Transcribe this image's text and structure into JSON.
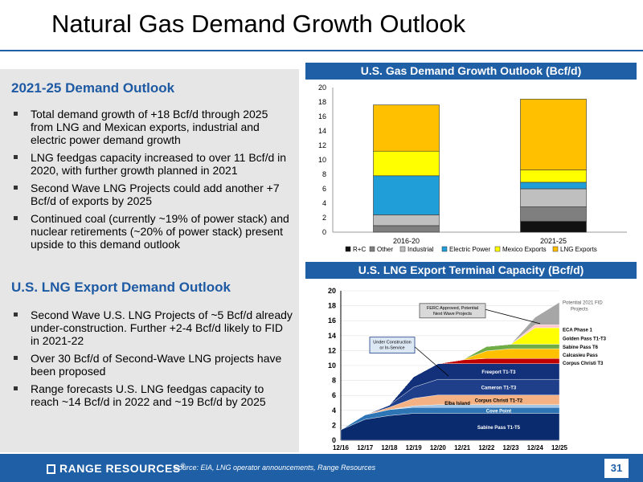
{
  "page": {
    "title": "Natural Gas Demand Growth Outlook",
    "page_number": "31",
    "source": "Source: EIA, LNG operator announcements, Range Resources",
    "logo_text": "RANGE RESOURCES",
    "logo_mark": "®"
  },
  "left": {
    "section1": {
      "heading": "2021-25 Demand Outlook",
      "bullets": [
        "Total demand growth of +18 Bcf/d through 2025 from LNG and Mexican exports, industrial and electric power demand growth",
        "LNG feedgas capacity increased to over 11 Bcf/d in 2020, with further growth planned in 2021",
        "Second Wave LNG Projects could add another +7 Bcf/d of exports by 2025",
        "Continued coal (currently ~19% of power stack) and nuclear retirements (~20% of power stack) present upside to this demand outlook"
      ]
    },
    "section2": {
      "heading": "U.S. LNG Export Demand Outlook",
      "bullets": [
        "Second Wave U.S. LNG Projects of ~5 Bcf/d already under-construction. Further +2-4 Bcf/d likely to FID in 2021-22",
        "Over 30 Bcf/d of Second-Wave LNG projects have been proposed",
        "Range forecasts U.S. LNG feedgas capacity to reach ~14 Bcf/d in 2022 and ~19 Bcf/d by 2025"
      ]
    }
  },
  "chart_data": [
    {
      "type": "bar",
      "stacked": true,
      "title": "U.S. Gas Demand Growth Outlook (Bcf/d)",
      "categories": [
        "2016-20",
        "2021-25"
      ],
      "ylim": [
        0,
        20
      ],
      "yticks": [
        0,
        2,
        4,
        6,
        8,
        10,
        12,
        14,
        16,
        18,
        20
      ],
      "grid": false,
      "legend": "bottom",
      "series": [
        {
          "name": "R+C",
          "color": "#111111",
          "values": [
            0.0,
            1.5
          ]
        },
        {
          "name": "Other",
          "color": "#7f7f7f",
          "values": [
            0.9,
            2.0
          ]
        },
        {
          "name": "Industrial",
          "color": "#bfbfbf",
          "values": [
            1.5,
            2.5
          ]
        },
        {
          "name": "Electric Power",
          "color": "#1f9ed8",
          "values": [
            5.4,
            0.9
          ]
        },
        {
          "name": "Mexico Exports",
          "color": "#ffff00",
          "values": [
            3.4,
            1.7
          ]
        },
        {
          "name": "LNG Exports",
          "color": "#ffc000",
          "values": [
            6.4,
            9.8
          ]
        }
      ]
    },
    {
      "type": "area",
      "stacked": true,
      "title": "U.S. LNG Export Terminal Capacity (Bcf/d)",
      "x": [
        "12/16",
        "12/17",
        "12/18",
        "12/19",
        "12/20",
        "12/21",
        "12/22",
        "12/23",
        "12/24",
        "12/25"
      ],
      "ylim": [
        0,
        20
      ],
      "yticks": [
        0,
        2,
        4,
        6,
        8,
        10,
        12,
        14,
        16,
        18,
        20
      ],
      "series": [
        {
          "name": "Sabine Pass T1-T5",
          "color": "#0a2c6e",
          "values": [
            1.4,
            2.8,
            3.3,
            3.6,
            3.6,
            3.6,
            3.6,
            3.6,
            3.6,
            3.6
          ]
        },
        {
          "name": "Cove Point",
          "color": "#2e75b6",
          "values": [
            0,
            0.6,
            0.8,
            0.8,
            0.8,
            0.8,
            0.8,
            0.8,
            0.8,
            0.8
          ]
        },
        {
          "name": "Elba Island",
          "color": "#9dc3e6",
          "values": [
            0,
            0,
            0,
            0.2,
            0.35,
            0.35,
            0.35,
            0.35,
            0.35,
            0.35
          ]
        },
        {
          "name": "Corpus Christi T1-T2",
          "color": "#f4b183",
          "values": [
            0,
            0,
            0.3,
            1.0,
            1.3,
            1.3,
            1.3,
            1.3,
            1.3,
            1.3
          ]
        },
        {
          "name": "Cameron T1-T3",
          "color": "#1f3f8a",
          "values": [
            0,
            0,
            0.3,
            1.5,
            2.1,
            2.1,
            2.1,
            2.1,
            2.1,
            2.1
          ]
        },
        {
          "name": "Freeport T1-T3",
          "color": "#13307a",
          "values": [
            0,
            0,
            0,
            1.4,
            2.1,
            2.1,
            2.1,
            2.1,
            2.1,
            2.1
          ]
        },
        {
          "name": "Corpus Christi T3",
          "color": "#c00000",
          "values": [
            0,
            0,
            0,
            0,
            0,
            0.5,
            0.7,
            0.7,
            0.7,
            0.7
          ]
        },
        {
          "name": "Calcasieu Pass",
          "color": "#ffc000",
          "values": [
            0,
            0,
            0,
            0,
            0,
            0,
            1.0,
            1.3,
            1.3,
            1.3
          ]
        },
        {
          "name": "Sabine Pass T6",
          "color": "#70ad47",
          "values": [
            0,
            0,
            0,
            0,
            0,
            0,
            0.6,
            0.6,
            0.6,
            0.6
          ]
        },
        {
          "name": "Golden Pass T1-T3",
          "color": "#ffff00",
          "values": [
            0,
            0,
            0,
            0,
            0,
            0,
            0,
            0,
            2.2,
            2.2
          ]
        },
        {
          "name": "ECA Phase 1",
          "color": "#ffc7ce",
          "values": [
            0,
            0,
            0,
            0,
            0,
            0,
            0,
            0,
            0.4,
            0.4
          ]
        },
        {
          "name": "Potential 2021 FID Projects",
          "color": "#a6a6a6",
          "values": [
            0,
            0,
            0,
            0,
            0,
            0,
            0,
            0,
            1.0,
            3.0
          ]
        }
      ],
      "annotations": [
        {
          "text": "FERC Approved, Potential Next Wave Projects"
        },
        {
          "text": "Under Construction or In-Service"
        }
      ]
    }
  ]
}
